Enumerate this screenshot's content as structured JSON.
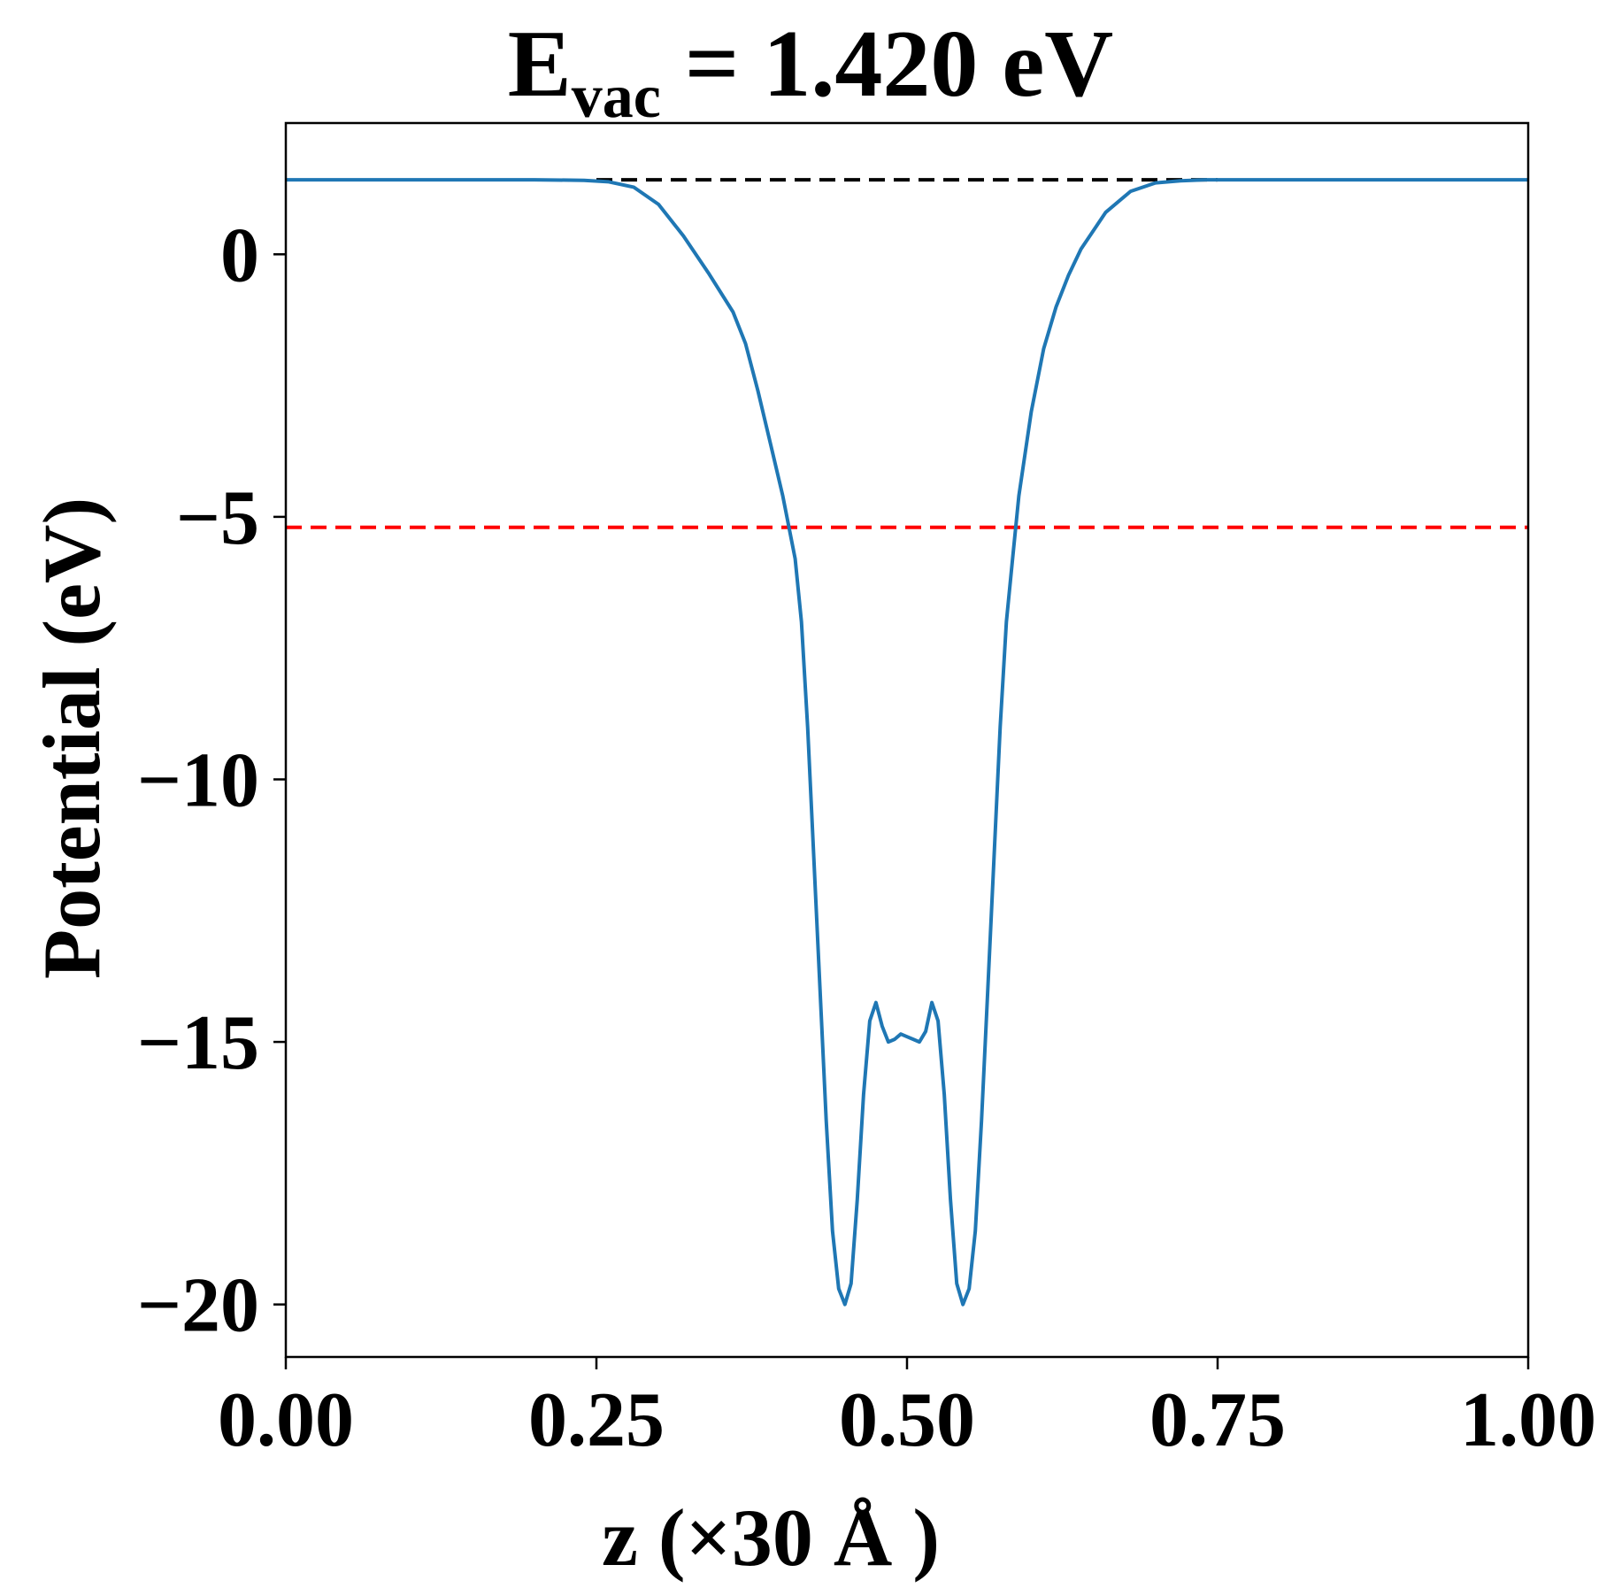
{
  "chart_data": {
    "type": "line",
    "title": {
      "main": "E",
      "subscript": "vac",
      "rest": " = 1.420 eV"
    },
    "xlabel": "z (×30 Å )",
    "ylabel": "Potential (eV)",
    "xlim": [
      0,
      1
    ],
    "ylim": [
      -21,
      2.5
    ],
    "grid": false,
    "x_ticks": [
      0,
      0.25,
      0.5,
      0.75,
      1.0
    ],
    "x_tick_labels": [
      "0.00",
      "0.25",
      "0.50",
      "0.75",
      "1.00"
    ],
    "y_ticks": [
      0,
      -5,
      -10,
      -15,
      -20
    ],
    "y_tick_labels": [
      "0",
      "−5",
      "−10",
      "−15",
      "−20"
    ],
    "reference_lines": [
      {
        "y": 1.42,
        "color": "#000000",
        "style": "dashed",
        "x_range": [
          0.25,
          0.75
        ]
      },
      {
        "y": -5.2,
        "color": "#ff0000",
        "style": "dashed",
        "x_range": [
          0,
          1
        ]
      }
    ],
    "series": [
      {
        "color": "#1f77b4",
        "x": [
          0.0,
          0.05,
          0.1,
          0.15,
          0.2,
          0.24,
          0.26,
          0.28,
          0.3,
          0.32,
          0.34,
          0.36,
          0.37,
          0.38,
          0.39,
          0.4,
          0.41,
          0.415,
          0.42,
          0.425,
          0.43,
          0.435,
          0.44,
          0.445,
          0.45,
          0.455,
          0.46,
          0.465,
          0.47,
          0.475,
          0.48,
          0.485,
          0.49,
          0.495,
          0.5,
          0.505,
          0.51,
          0.515,
          0.52,
          0.525,
          0.53,
          0.535,
          0.54,
          0.545,
          0.55,
          0.555,
          0.56,
          0.565,
          0.57,
          0.575,
          0.58,
          0.585,
          0.59,
          0.6,
          0.61,
          0.62,
          0.63,
          0.64,
          0.66,
          0.68,
          0.7,
          0.72,
          0.74,
          0.76,
          0.8,
          0.85,
          0.9,
          0.95,
          1.0
        ],
        "y": [
          1.42,
          1.42,
          1.42,
          1.42,
          1.42,
          1.41,
          1.38,
          1.28,
          0.95,
          0.35,
          -0.35,
          -1.1,
          -1.7,
          -2.6,
          -3.6,
          -4.6,
          -5.8,
          -7.0,
          -9.0,
          -11.5,
          -14.0,
          -16.5,
          -18.6,
          -19.7,
          -20.0,
          -19.6,
          -18.0,
          -16.0,
          -14.6,
          -14.25,
          -14.7,
          -15.0,
          -14.95,
          -14.85,
          -14.9,
          -14.95,
          -15.0,
          -14.8,
          -14.25,
          -14.6,
          -16.0,
          -18.0,
          -19.6,
          -20.0,
          -19.7,
          -18.6,
          -16.5,
          -14.0,
          -11.5,
          -9.0,
          -7.0,
          -5.8,
          -4.6,
          -3.0,
          -1.8,
          -1.0,
          -0.4,
          0.1,
          0.8,
          1.2,
          1.36,
          1.4,
          1.42,
          1.42,
          1.42,
          1.42,
          1.42,
          1.42,
          1.42
        ]
      }
    ]
  }
}
